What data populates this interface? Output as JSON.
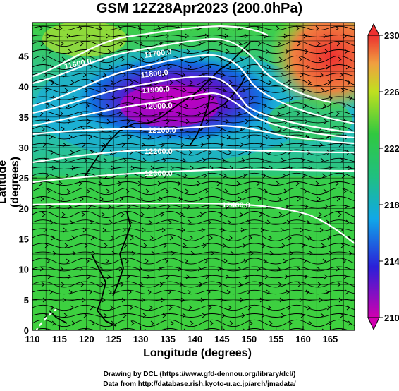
{
  "title": "GSM 12Z28Apr2023 (200.0hPa)",
  "xaxis": {
    "label": "Longitude (degrees)",
    "ticks": [
      "110",
      "115",
      "120",
      "125",
      "130",
      "135",
      "140",
      "145",
      "150",
      "155",
      "160",
      "165"
    ],
    "range": [
      110,
      169.5
    ]
  },
  "yaxis": {
    "label": "Latitude  (degrees)",
    "ticks": [
      "0",
      "5",
      "10",
      "15",
      "20",
      "25",
      "30",
      "35",
      "40",
      "45"
    ],
    "range": [
      0,
      50.5
    ]
  },
  "colorbar": {
    "labels": [
      "230",
      "226",
      "222",
      "218",
      "214",
      "210"
    ],
    "range": [
      210,
      230
    ],
    "colors": [
      "#c800c8",
      "#2020d0",
      "#10a0e0",
      "#20c060",
      "#40d040",
      "#c0e020",
      "#f0a040",
      "#ee3030"
    ]
  },
  "contours": [
    {
      "label": "11600.0"
    },
    {
      "label": "11700.0"
    },
    {
      "label": "11800.0"
    },
    {
      "label": "11900.0"
    },
    {
      "label": "12000.0"
    },
    {
      "label": "12100.0"
    },
    {
      "label": "12200.0"
    },
    {
      "label": "12300.0"
    },
    {
      "label": "12400.0"
    }
  ],
  "credits": {
    "line1": "Drawing by DCL (https://www.gfd-dennou.org/library/dcl/)",
    "line2": "Data from http://database.rish.kyoto-u.ac.jp/arch/jmadata/"
  }
}
